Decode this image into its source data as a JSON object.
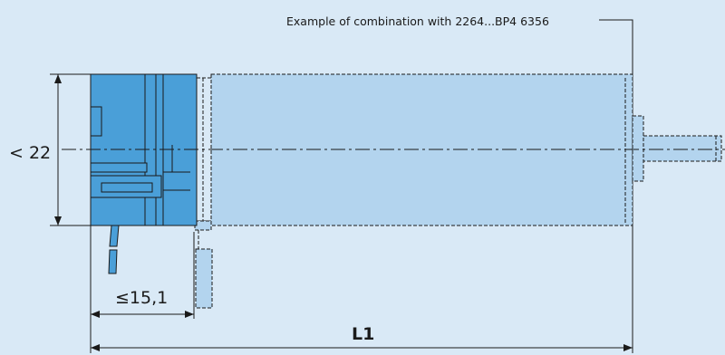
{
  "drawing": {
    "caption": "Example of combination with 2264...BP4 6356",
    "height_label": "< 22",
    "length_label": "≤15,1",
    "overall_length_label": "L1"
  },
  "colors": {
    "background": "#d9e9f6",
    "encoder_body": "#4a9fd8",
    "motor_body": "#b3d4ee",
    "line": "#1a1a1a"
  }
}
